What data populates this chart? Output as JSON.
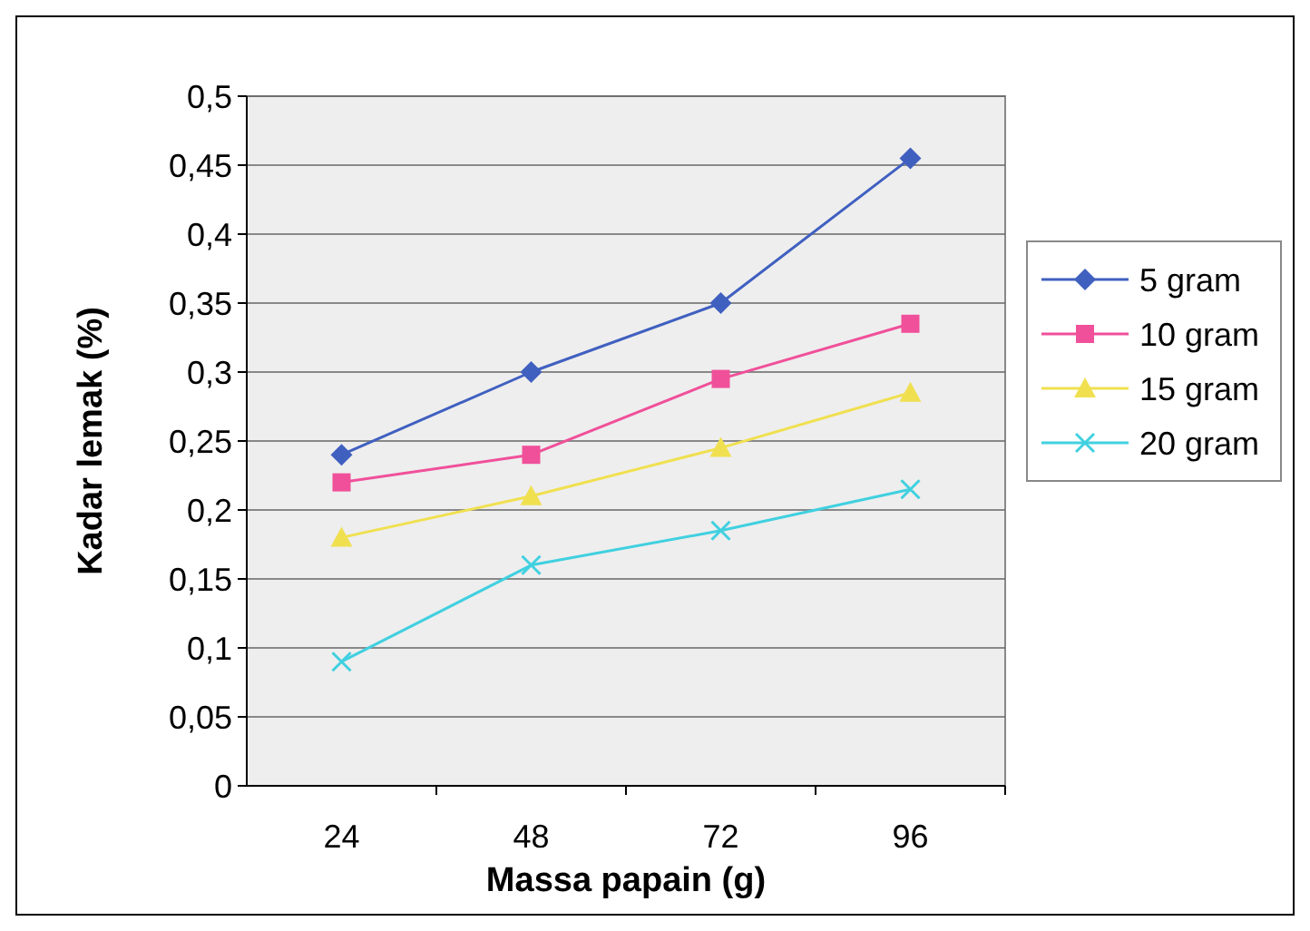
{
  "chart_data": {
    "type": "line",
    "xlabel": "Massa papain (g)",
    "ylabel": "Kadar lemak (%)",
    "categories": [
      "24",
      "48",
      "72",
      "96"
    ],
    "ylim": [
      0,
      0.5
    ],
    "yticks": [
      {
        "value": 0,
        "label": "0"
      },
      {
        "value": 0.05,
        "label": "0,05"
      },
      {
        "value": 0.1,
        "label": "0,1"
      },
      {
        "value": 0.15,
        "label": "0,15"
      },
      {
        "value": 0.2,
        "label": "0,2"
      },
      {
        "value": 0.25,
        "label": "0,25"
      },
      {
        "value": 0.3,
        "label": "0,3"
      },
      {
        "value": 0.35,
        "label": "0,35"
      },
      {
        "value": 0.4,
        "label": "0,4"
      },
      {
        "value": 0.45,
        "label": "0,45"
      },
      {
        "value": 0.5,
        "label": "0,5"
      }
    ],
    "grid": "y",
    "legend": "right",
    "series": [
      {
        "name": "5 gram",
        "color": "#4060c0",
        "marker": "diamond",
        "values": [
          0.24,
          0.3,
          0.35,
          0.455
        ]
      },
      {
        "name": "10 gram",
        "color": "#f0509a",
        "marker": "square",
        "values": [
          0.22,
          0.24,
          0.295,
          0.335
        ]
      },
      {
        "name": "15 gram",
        "color": "#f0e050",
        "marker": "triangle",
        "values": [
          0.18,
          0.21,
          0.245,
          0.285
        ]
      },
      {
        "name": "20 gram",
        "color": "#40d0e0",
        "marker": "cross",
        "values": [
          0.09,
          0.16,
          0.185,
          0.215
        ]
      }
    ]
  }
}
